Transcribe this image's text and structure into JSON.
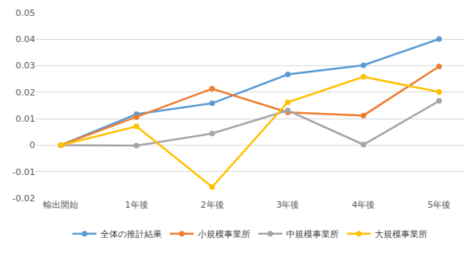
{
  "chart_data": {
    "type": "line",
    "categories": [
      "輸出開始",
      "1年後",
      "2年後",
      "3年後",
      "4年後",
      "5年後"
    ],
    "series": [
      {
        "name": "全体の推計結果",
        "color": "#5B9BD5",
        "values": [
          0,
          0.0117,
          0.0158,
          0.0267,
          0.0302,
          0.0401
        ]
      },
      {
        "name": "小規模事業所",
        "color": "#ED7D31",
        "values": [
          0,
          0.0106,
          0.0213,
          0.0124,
          0.0112,
          0.0297
        ]
      },
      {
        "name": "中規模事業所",
        "color": "#A5A5A5",
        "values": [
          0,
          -0.0002,
          0.0044,
          0.0131,
          0.0002,
          0.0167
        ]
      },
      {
        "name": "大規模事業所",
        "color": "#FFC000",
        "values": [
          0,
          0.0071,
          -0.0158,
          0.0162,
          0.0258,
          0.0201
        ]
      }
    ],
    "ylim": [
      -0.02,
      0.05
    ],
    "yticks": [
      -0.02,
      -0.01,
      0,
      0.01,
      0.02,
      0.03,
      0.04,
      0.05
    ],
    "grid": true,
    "legend": "bottom",
    "marker": "circle",
    "line_style": "solid"
  }
}
